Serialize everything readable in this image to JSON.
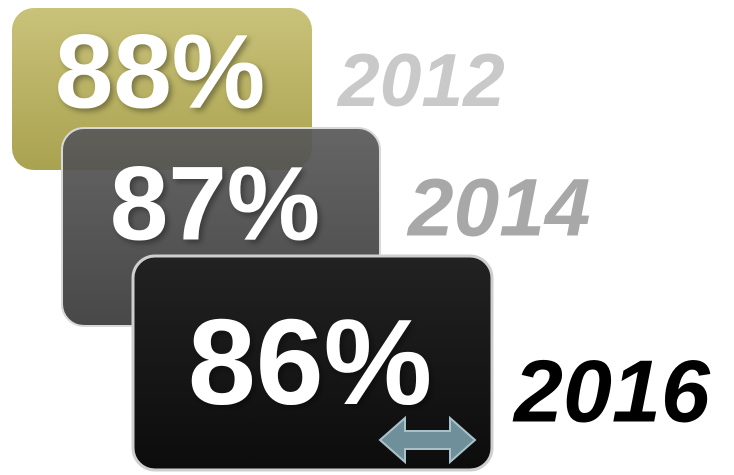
{
  "items": [
    {
      "label": "88%",
      "year": "2012"
    },
    {
      "label": "87%",
      "year": "2014"
    },
    {
      "label": "86%",
      "year": "2016"
    }
  ]
}
